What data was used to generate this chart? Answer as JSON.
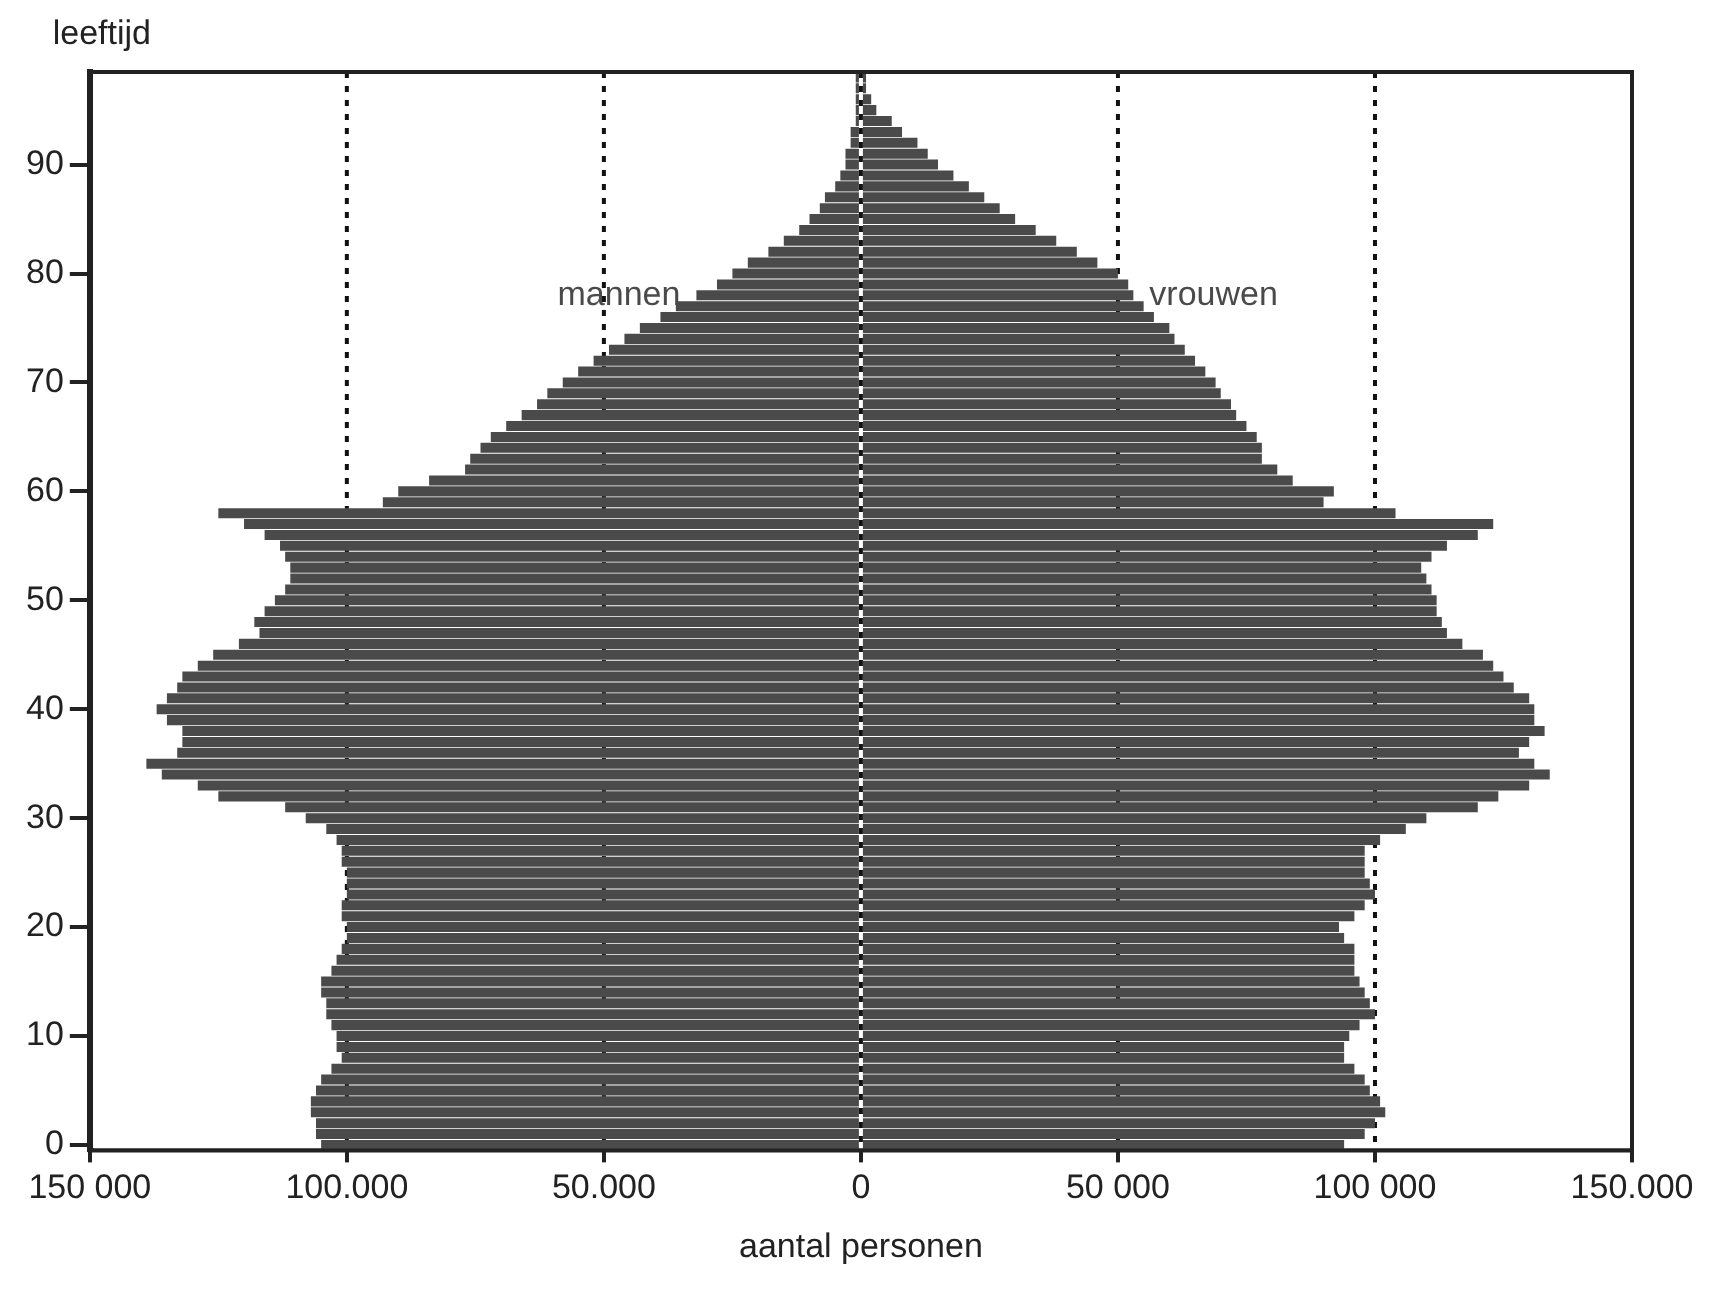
{
  "chart_data": {
    "type": "bar",
    "orientation": "horizontal",
    "stacked": true,
    "ylabel": "leeftijd",
    "xlabel": "aantal personen",
    "categories": [
      null,
      null,
      null,
      null,
      null,
      null,
      null,
      null,
      "90",
      null,
      null,
      null,
      null,
      null,
      null,
      null,
      null,
      null,
      "80",
      null,
      null,
      null,
      null,
      null,
      null,
      null,
      null,
      null,
      "70",
      null,
      null,
      null,
      null,
      null,
      null,
      null,
      null,
      null,
      "60",
      null,
      null,
      null,
      null,
      null,
      null,
      null,
      null,
      null,
      "50",
      null,
      null,
      null,
      null,
      null,
      null,
      null,
      null,
      null,
      "40",
      null,
      null,
      null,
      null,
      null,
      null,
      null,
      null,
      null,
      "30",
      null,
      null,
      null,
      null,
      null,
      null,
      null,
      null,
      null,
      "20",
      null,
      null,
      null,
      null,
      null,
      null,
      null,
      null,
      null,
      "10",
      null,
      null,
      null,
      null,
      null,
      null,
      null,
      null,
      null,
      "0"
    ],
    "series": [
      {
        "name": "mannen",
        "color": "#4a4a4a",
        "values": [
          -1000,
          -1000,
          -1000,
          -1000,
          -1000,
          -2000,
          -2000,
          -3000,
          -3000,
          -4000,
          -5000,
          -7000,
          -8000,
          -10000,
          -12000,
          -15000,
          -18000,
          -22000,
          -25000,
          -28000,
          -32000,
          -36000,
          -39000,
          -43000,
          -46000,
          -49000,
          -52000,
          -55000,
          -58000,
          -61000,
          -63000,
          -66000,
          -69000,
          -72000,
          -74000,
          -76000,
          -77000,
          -84000,
          -90000,
          -93000,
          -125000,
          -120000,
          -116000,
          -113000,
          -112000,
          -111000,
          -111000,
          -112000,
          -114000,
          -116000,
          -118000,
          -117000,
          -121000,
          -126000,
          -129000,
          -132000,
          -133000,
          -135000,
          -137000,
          -135000,
          -132000,
          -132000,
          -133000,
          -139000,
          -136000,
          -129000,
          -125000,
          -112000,
          -108000,
          -104000,
          -102000,
          -101000,
          -101000,
          -100000,
          -100000,
          -100000,
          -101000,
          -101000,
          -100000,
          -100000,
          -101000,
          -102000,
          -103000,
          -105000,
          -105000,
          -104000,
          -104000,
          -103000,
          -102000,
          -102000,
          -101000,
          -103000,
          -105000,
          -106000,
          -107000,
          -107000,
          -106000,
          -106000,
          -105000
        ]
      },
      {
        "name": "vrouwen",
        "color": "#4a4a4a",
        "values": [
          1000,
          1000,
          2000,
          3000,
          6000,
          8000,
          11000,
          13000,
          15000,
          18000,
          21000,
          24000,
          27000,
          30000,
          34000,
          38000,
          42000,
          46000,
          50000,
          52000,
          53000,
          55000,
          57000,
          60000,
          61000,
          63000,
          65000,
          67000,
          69000,
          70000,
          72000,
          73000,
          75000,
          77000,
          78000,
          78000,
          81000,
          84000,
          92000,
          90000,
          104000,
          123000,
          120000,
          114000,
          111000,
          109000,
          110000,
          111000,
          112000,
          112000,
          113000,
          114000,
          117000,
          121000,
          123000,
          125000,
          127000,
          130000,
          131000,
          131000,
          133000,
          130000,
          128000,
          131000,
          134000,
          130000,
          124000,
          120000,
          110000,
          106000,
          101000,
          98000,
          98000,
          98000,
          99000,
          100000,
          98000,
          96000,
          93000,
          94000,
          96000,
          96000,
          96000,
          97000,
          98000,
          99000,
          100000,
          97000,
          95000,
          94000,
          94000,
          96000,
          98000,
          99000,
          101000,
          102000,
          100000,
          98000,
          94000
        ]
      }
    ],
    "xlim": [
      -150000,
      150000
    ],
    "xticks": [
      {
        "value": -150000,
        "label": "150 000"
      },
      {
        "value": -100000,
        "label": "100.000"
      },
      {
        "value": -50000,
        "label": "50.000"
      },
      0,
      {
        "value": 50000,
        "label": "50 000"
      },
      {
        "value": 100000,
        "label": "100 000"
      },
      {
        "value": 150000,
        "label": "150.000"
      }
    ],
    "grid": "x",
    "line_style": "dashed",
    "legend": false
  }
}
